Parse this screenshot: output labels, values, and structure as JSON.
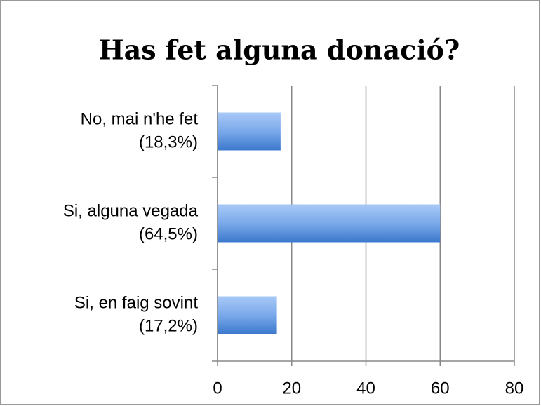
{
  "chart_data": {
    "type": "bar",
    "orientation": "horizontal",
    "title": "Has fet alguna donació?",
    "categories": [
      [
        "No, mai n'he fet",
        "(18,3%)"
      ],
      [
        "Si, alguna vegada",
        "(64,5%)"
      ],
      [
        "Si, en faig sovint",
        "(17,2%)"
      ]
    ],
    "values": [
      17,
      60,
      16
    ],
    "color": "#4a86d6",
    "xlim": [
      0,
      80
    ],
    "xticks": [
      0,
      20,
      40,
      60,
      80
    ],
    "grid": true
  }
}
